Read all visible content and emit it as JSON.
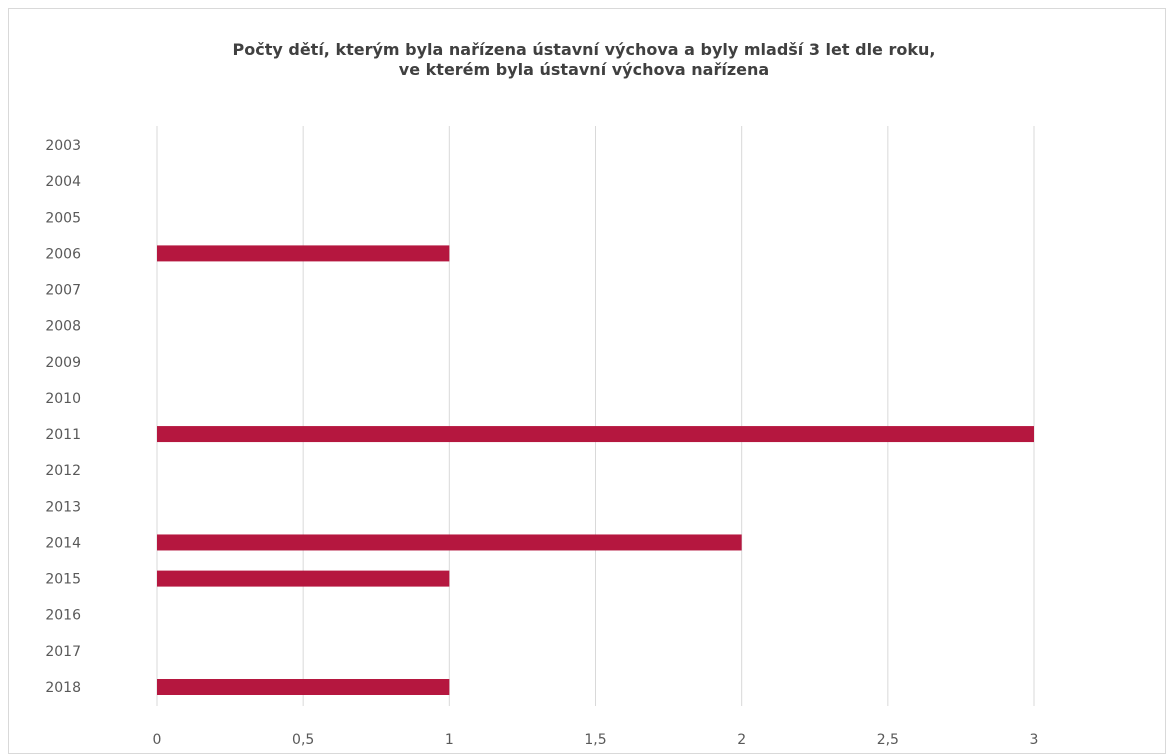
{
  "chart_data": {
    "type": "bar",
    "orientation": "horizontal",
    "title_lines": [
      "Počty dětí, kterým byla nařízena ústavní výchova a byly mladší 3 let dle roku,",
      "ve kterém byla ústavní výchova nařízena"
    ],
    "categories": [
      "2003",
      "2004",
      "2005",
      "2006",
      "2007",
      "2008",
      "2009",
      "2010",
      "2011",
      "2012",
      "2013",
      "2014",
      "2015",
      "2016",
      "2017",
      "2018"
    ],
    "values": [
      0,
      0,
      0,
      1,
      0,
      0,
      0,
      0,
      3,
      0,
      0,
      2,
      1,
      0,
      0,
      1
    ],
    "xlim": [
      0,
      3
    ],
    "x_ticks": [
      0,
      0.5,
      1,
      1.5,
      2,
      2.5,
      3
    ],
    "x_tick_labels": [
      "0",
      "0,5",
      "1",
      "1,5",
      "2",
      "2,5",
      "3"
    ],
    "grid": "vertical",
    "legend": "none",
    "bar_color": "#b5173f",
    "grid_color": "#d9d9d9"
  }
}
